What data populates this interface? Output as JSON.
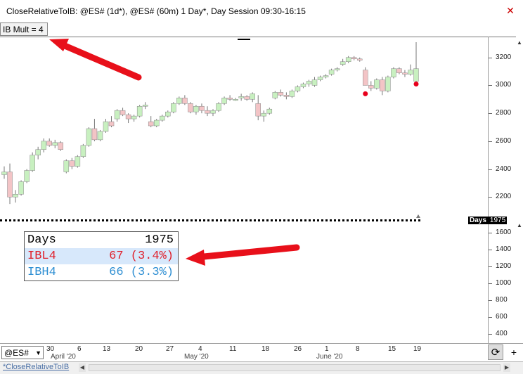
{
  "window": {
    "title": "CloseRelativeToIB: @ES# (1d*), @ES# (60m) 1 Day*, Day Session 09:30-16:15",
    "close_icon": "close-icon"
  },
  "indicator_label": "IB Mult = 4",
  "price_axis": {
    "ticks": [
      "3200",
      "3000",
      "2800",
      "2600",
      "2400",
      "2200"
    ],
    "range": [
      2050,
      3350
    ]
  },
  "sub_axis": {
    "ticks": [
      "1600",
      "1400",
      "1200",
      "1000",
      "800",
      "600",
      "400"
    ],
    "range": [
      290,
      1740
    ]
  },
  "days_tag": {
    "label": "Days",
    "value": "1975"
  },
  "stats_table": {
    "rows": [
      {
        "label": "Days",
        "value": "1975"
      },
      {
        "label": "IBL4",
        "value": "67 (3.4%)"
      },
      {
        "label": "IBH4",
        "value": "66 (3.3%)"
      }
    ]
  },
  "date_axis": {
    "days": [
      "30",
      "6",
      "13",
      "20",
      "27",
      "4",
      "11",
      "18",
      "26",
      "1",
      "8",
      "15",
      "19"
    ],
    "months": [
      "April '20",
      "May '20",
      "June '20"
    ]
  },
  "symbol_selector": {
    "value": "@ES#"
  },
  "workspace_tab": {
    "label": "*CloseRelativeToIB"
  },
  "colors": {
    "up_candle": "#c8f0c0",
    "down_candle": "#f3c4c6",
    "marker_red": "#e8001c",
    "ibl_text": "#e0202b",
    "ibh_text": "#2f8fd3",
    "arrow": "#e8101a"
  },
  "chart_data": {
    "type": "candlestick",
    "series": [
      {
        "values": [
          [
            2360,
            2420,
            2330,
            2380
          ],
          [
            2380,
            2440,
            2150,
            2200
          ],
          [
            2200,
            2250,
            2160,
            2220
          ],
          [
            2220,
            2320,
            2210,
            2310
          ],
          [
            2310,
            2400,
            2300,
            2390
          ],
          [
            2390,
            2520,
            2380,
            2500
          ],
          [
            2500,
            2560,
            2470,
            2540
          ],
          [
            2540,
            2620,
            2520,
            2600
          ],
          [
            2600,
            2620,
            2560,
            2570
          ],
          [
            2570,
            2610,
            2550,
            2590
          ],
          [
            2590,
            2600,
            2530,
            2540
          ],
          [
            2380,
            2470,
            2370,
            2460
          ],
          [
            2460,
            2480,
            2400,
            2420
          ],
          [
            2420,
            2500,
            2410,
            2490
          ],
          [
            2490,
            2580,
            2480,
            2570
          ],
          [
            2570,
            2700,
            2560,
            2690
          ],
          [
            2690,
            2760,
            2600,
            2610
          ],
          [
            2610,
            2680,
            2600,
            2670
          ],
          [
            2670,
            2760,
            2660,
            2740
          ],
          [
            2740,
            2780,
            2700,
            2710
          ],
          [
            2760,
            2830,
            2740,
            2820
          ],
          [
            2820,
            2840,
            2780,
            2790
          ],
          [
            2790,
            2800,
            2730,
            2760
          ],
          [
            2760,
            2790,
            2740,
            2780
          ],
          [
            2780,
            2860,
            2770,
            2850
          ],
          [
            2850,
            2880,
            2830,
            2860
          ],
          [
            2740,
            2780,
            2700,
            2710
          ],
          [
            2710,
            2760,
            2700,
            2750
          ],
          [
            2750,
            2790,
            2740,
            2780
          ],
          [
            2780,
            2820,
            2770,
            2810
          ],
          [
            2810,
            2880,
            2800,
            2870
          ],
          [
            2870,
            2920,
            2860,
            2910
          ],
          [
            2910,
            2930,
            2860,
            2870
          ],
          [
            2870,
            2880,
            2800,
            2810
          ],
          [
            2810,
            2860,
            2790,
            2850
          ],
          [
            2850,
            2870,
            2800,
            2820
          ],
          [
            2820,
            2850,
            2780,
            2800
          ],
          [
            2800,
            2830,
            2780,
            2820
          ],
          [
            2820,
            2880,
            2810,
            2870
          ],
          [
            2870,
            2920,
            2860,
            2910
          ],
          [
            2910,
            2930,
            2890,
            2900
          ],
          [
            2900,
            2910,
            2890,
            2900
          ],
          [
            2910,
            2940,
            2890,
            2920
          ],
          [
            2920,
            2930,
            2890,
            2900
          ],
          [
            2900,
            2950,
            2880,
            2940
          ],
          [
            2870,
            2930,
            2750,
            2780
          ],
          [
            2780,
            2820,
            2740,
            2800
          ],
          [
            2800,
            2840,
            2790,
            2830
          ],
          [
            2910,
            2960,
            2900,
            2950
          ],
          [
            2950,
            2970,
            2920,
            2930
          ],
          [
            2930,
            2950,
            2900,
            2920
          ],
          [
            2920,
            2970,
            2910,
            2960
          ],
          [
            2960,
            3000,
            2950,
            2990
          ],
          [
            2990,
            3020,
            2980,
            3010
          ],
          [
            3010,
            3040,
            2990,
            3030
          ],
          [
            3000,
            3060,
            2990,
            3040
          ],
          [
            3040,
            3070,
            3030,
            3060
          ],
          [
            3060,
            3080,
            3050,
            3070
          ],
          [
            3080,
            3120,
            3070,
            3110
          ],
          [
            3110,
            3130,
            3100,
            3120
          ],
          [
            3150,
            3190,
            3140,
            3170
          ],
          [
            3170,
            3210,
            3160,
            3200
          ],
          [
            3200,
            3210,
            3180,
            3190
          ],
          [
            3190,
            3200,
            3170,
            3180
          ],
          [
            3110,
            3130,
            3000,
            3000
          ],
          [
            3000,
            3030,
            2960,
            2980
          ],
          [
            2980,
            3050,
            2970,
            3040
          ],
          [
            3040,
            3060,
            2930,
            2960
          ],
          [
            2960,
            3070,
            2950,
            3060
          ],
          [
            3060,
            3130,
            3050,
            3120
          ],
          [
            3120,
            3130,
            3080,
            3090
          ],
          [
            3090,
            3110,
            3060,
            3080
          ],
          [
            3080,
            3150,
            3070,
            3110
          ],
          [
            3030,
            3310,
            3020,
            3120
          ]
        ]
      }
    ],
    "markers": [
      {
        "index": 64,
        "value": 2940
      },
      {
        "index": 73,
        "value": 3010
      }
    ],
    "xlabels": [
      "30",
      "6",
      "13",
      "20",
      "27",
      "4",
      "11",
      "18",
      "26",
      "1",
      "8",
      "15",
      "19"
    ],
    "ylim": [
      2050,
      3350
    ]
  }
}
